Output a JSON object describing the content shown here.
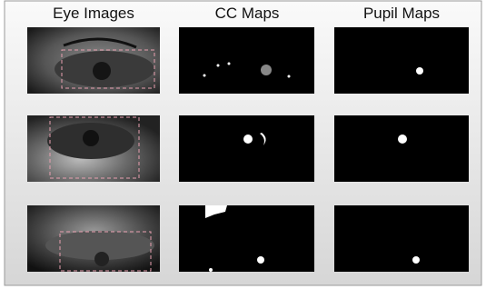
{
  "columns": [
    "Eye Images",
    "CC Maps",
    "Pupil Maps"
  ]
}
